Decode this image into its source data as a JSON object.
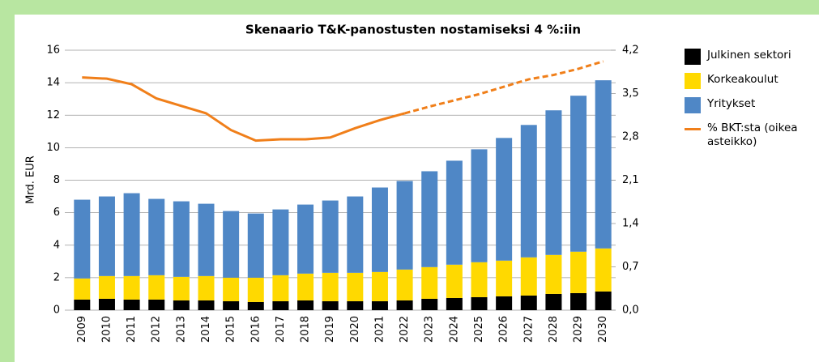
{
  "chart_data": {
    "type": "bar-line",
    "title": "Skenaario T&K-panostusten nostamiseksi 4 %:iin",
    "ylabel": "Mrd. EUR",
    "categories": [
      "2009",
      "2010",
      "2011",
      "2012",
      "2013",
      "2014",
      "2015",
      "2016",
      "2017",
      "2018",
      "2019",
      "2020",
      "2021",
      "2022",
      "2023",
      "2024",
      "2025",
      "2026",
      "2027",
      "2028",
      "2029",
      "2030"
    ],
    "series": [
      {
        "name": "Julkinen sektori",
        "color": "#000000",
        "kind": "bar",
        "values": [
          0.65,
          0.7,
          0.65,
          0.65,
          0.6,
          0.6,
          0.55,
          0.5,
          0.55,
          0.6,
          0.55,
          0.55,
          0.55,
          0.6,
          0.7,
          0.75,
          0.8,
          0.85,
          0.9,
          1.0,
          1.05,
          1.15
        ]
      },
      {
        "name": "Korkeakoulut",
        "color": "#ffd900",
        "kind": "bar",
        "values": [
          1.3,
          1.4,
          1.45,
          1.5,
          1.45,
          1.5,
          1.45,
          1.5,
          1.6,
          1.65,
          1.75,
          1.75,
          1.8,
          1.9,
          1.95,
          2.05,
          2.15,
          2.2,
          2.35,
          2.4,
          2.55,
          2.65
        ]
      },
      {
        "name": "Yritykset",
        "color": "#4f87c6",
        "kind": "bar",
        "values": [
          4.85,
          4.9,
          5.1,
          4.7,
          4.65,
          4.45,
          4.1,
          3.95,
          4.05,
          4.25,
          4.45,
          4.7,
          5.2,
          5.45,
          5.9,
          6.4,
          6.95,
          7.55,
          8.15,
          8.9,
          9.6,
          10.35
        ]
      },
      {
        "name": "% BKT:sta (oikea asteikko)",
        "color": "#f07f1a",
        "kind": "line",
        "axis": "y2",
        "dashed_from": "2022",
        "values": [
          3.76,
          3.74,
          3.65,
          3.42,
          3.3,
          3.18,
          2.91,
          2.74,
          2.76,
          2.76,
          2.79,
          2.94,
          3.07,
          3.18,
          3.29,
          3.39,
          3.49,
          3.61,
          3.73,
          3.8,
          3.9,
          4.02
        ]
      }
    ],
    "ylim": [
      0,
      16
    ],
    "yticks": [
      0,
      2,
      4,
      6,
      8,
      10,
      12,
      14,
      16
    ],
    "y2lim": [
      0,
      4.2
    ],
    "y2ticks": [
      {
        "value": 0,
        "label": "0,0"
      },
      {
        "value": 0.7,
        "label": "0,7"
      },
      {
        "value": 1.4,
        "label": "1,4"
      },
      {
        "value": 2.1,
        "label": "2,1"
      },
      {
        "value": 2.8,
        "label": "2,8"
      },
      {
        "value": 3.5,
        "label": "3,5"
      },
      {
        "value": 4.2,
        "label": "4,2"
      }
    ],
    "grid": true,
    "legend": "right"
  }
}
